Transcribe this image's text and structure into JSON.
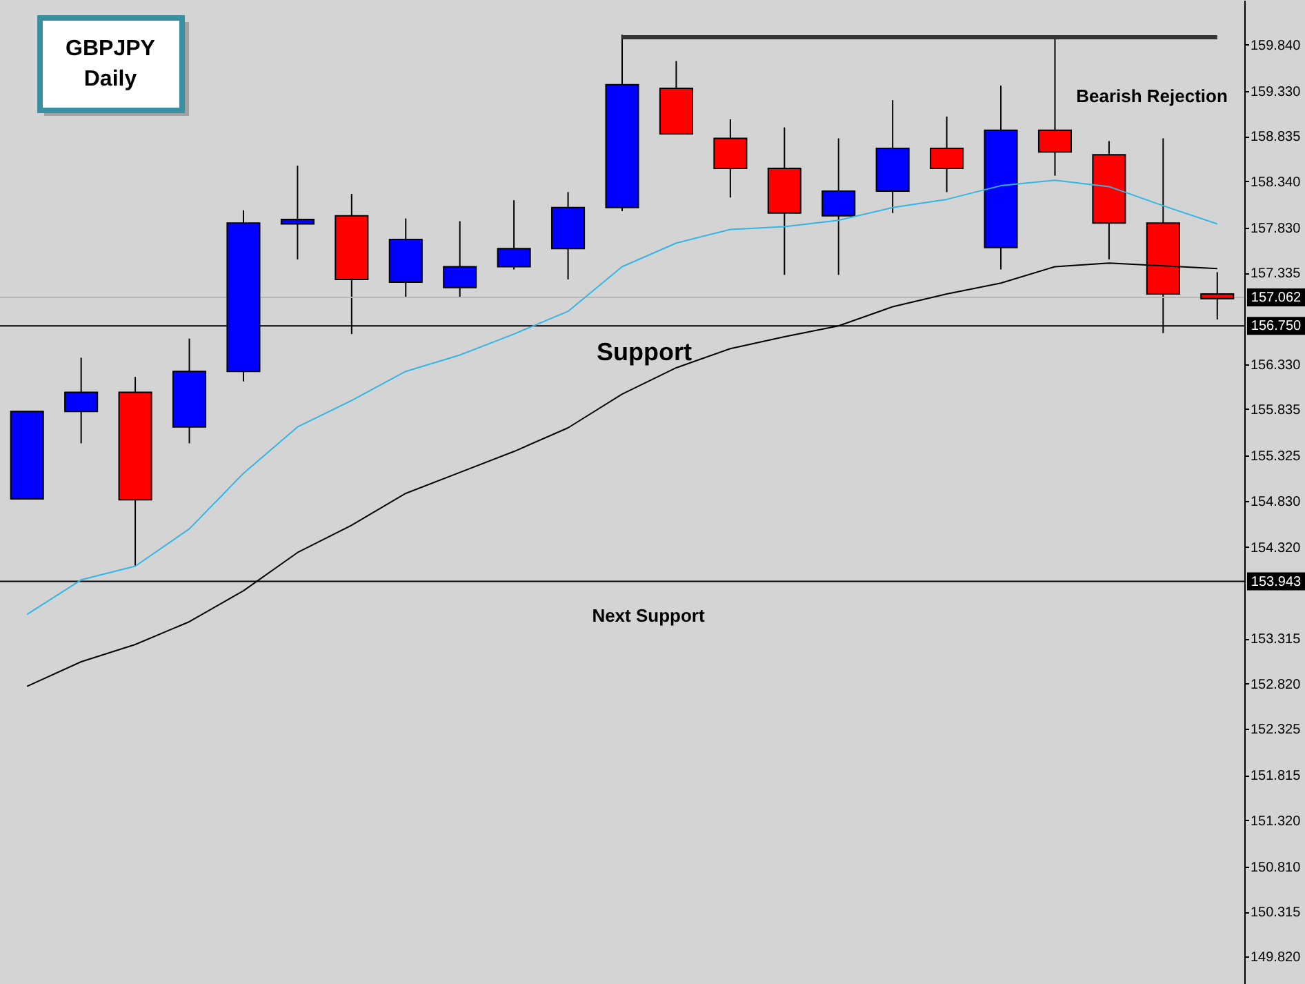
{
  "chart_data": {
    "type": "candlestick",
    "title": "GBPJPY",
    "subtitle": "Daily",
    "categories": [
      null,
      null,
      null,
      null,
      null,
      null,
      null,
      null,
      null,
      null,
      null,
      null,
      null,
      null,
      null,
      null,
      null,
      null,
      null,
      null,
      null,
      null,
      null
    ],
    "ohlc": [
      [
        154.85,
        155.81,
        154.85,
        155.81
      ],
      [
        155.81,
        156.4,
        155.46,
        156.02
      ],
      [
        156.02,
        156.19,
        154.11,
        154.84
      ],
      [
        155.64,
        156.61,
        155.46,
        156.25
      ],
      [
        156.25,
        158.02,
        156.14,
        157.88
      ],
      [
        157.87,
        158.51,
        157.48,
        157.92
      ],
      [
        157.96,
        158.2,
        156.66,
        157.26
      ],
      [
        157.23,
        157.93,
        157.07,
        157.7
      ],
      [
        157.17,
        157.9,
        157.07,
        157.4
      ],
      [
        157.4,
        158.13,
        157.37,
        157.6
      ],
      [
        157.6,
        158.22,
        157.26,
        158.05
      ],
      [
        158.05,
        159.95,
        158.01,
        159.4
      ],
      [
        159.36,
        159.66,
        158.86,
        158.86
      ],
      [
        158.81,
        159.02,
        158.16,
        158.48
      ],
      [
        158.48,
        158.93,
        157.31,
        157.99
      ],
      [
        157.96,
        158.81,
        157.31,
        158.23
      ],
      [
        158.23,
        159.23,
        157.99,
        158.7
      ],
      [
        158.7,
        159.05,
        158.22,
        158.48
      ],
      [
        157.61,
        159.39,
        157.37,
        158.9
      ],
      [
        158.9,
        159.9,
        158.4,
        158.66
      ],
      [
        158.63,
        158.78,
        157.48,
        157.88
      ],
      [
        157.88,
        158.81,
        156.67,
        157.1
      ],
      [
        157.1,
        157.34,
        156.82,
        157.05
      ]
    ],
    "colors": [
      "#0000ff",
      "#0000ff",
      "#ff0000",
      "#0000ff",
      "#0000ff",
      "#0000ff",
      "#ff0000",
      "#0000ff",
      "#0000ff",
      "#0000ff",
      "#0000ff",
      "#0000ff",
      "#ff0000",
      "#ff0000",
      "#ff0000",
      "#0000ff",
      "#0000ff",
      "#ff0000",
      "#0000ff",
      "#ff0000",
      "#ff0000",
      "#ff0000",
      "#ff0000"
    ],
    "series": [
      {
        "type": "line",
        "color": "#33b5e5",
        "values": [
          153.58,
          153.96,
          154.11,
          154.52,
          155.13,
          155.64,
          155.93,
          156.25,
          156.43,
          156.66,
          156.91,
          157.4,
          157.66,
          157.81,
          157.84,
          157.91,
          158.05,
          158.14,
          158.29,
          158.35,
          158.28,
          158.07,
          157.87
        ]
      },
      {
        "type": "line",
        "color": "#000000",
        "values": [
          152.79,
          153.06,
          153.25,
          153.5,
          153.84,
          154.26,
          154.56,
          154.91,
          155.14,
          155.37,
          155.63,
          156.0,
          156.29,
          156.5,
          156.63,
          156.75,
          156.96,
          157.1,
          157.22,
          157.4,
          157.44,
          157.41,
          157.38
        ]
      },
      {
        "type": "line",
        "color": "#333333",
        "values": [
          null,
          null,
          null,
          null,
          null,
          null,
          null,
          null,
          null,
          null,
          null,
          159.92,
          159.92,
          159.92,
          159.92,
          159.92,
          159.92,
          159.92,
          159.92,
          159.92,
          159.92,
          159.92,
          159.92
        ]
      }
    ],
    "ylim": [
      149.52,
      160.33
    ],
    "yticks": [
      {
        "value": 159.84,
        "label": "159.840"
      },
      {
        "value": 159.33,
        "label": "159.330"
      },
      {
        "value": 158.835,
        "label": "158.835"
      },
      {
        "value": 158.34,
        "label": "158.340"
      },
      {
        "value": 157.83,
        "label": "157.830"
      },
      {
        "value": 157.335,
        "label": "157.335"
      },
      {
        "value": 156.33,
        "label": "156.330"
      },
      {
        "value": 155.835,
        "label": "155.835"
      },
      {
        "value": 155.325,
        "label": "155.325"
      },
      {
        "value": 154.83,
        "label": "154.830"
      },
      {
        "value": 154.32,
        "label": "154.320"
      },
      {
        "value": 153.315,
        "label": "153.315"
      },
      {
        "value": 152.82,
        "label": "152.820"
      },
      {
        "value": 152.325,
        "label": "152.325"
      },
      {
        "value": 151.815,
        "label": "151.815"
      },
      {
        "value": 151.32,
        "label": "151.320"
      },
      {
        "value": 150.81,
        "label": "150.810"
      },
      {
        "value": 150.315,
        "label": "150.315"
      },
      {
        "value": 149.82,
        "label": "149.820"
      }
    ],
    "ref_lines": [
      {
        "axis": "y",
        "value": 157.062,
        "label": "157.062",
        "color": "#b8b8b8"
      },
      {
        "axis": "y",
        "value": 156.75,
        "label": "156.750",
        "color": "#000000"
      },
      {
        "axis": "y",
        "value": 153.943,
        "label": "153.943",
        "color": "#000000"
      }
    ],
    "annotations": [
      {
        "text": "Support",
        "y": 156.75
      },
      {
        "text": "Next Support",
        "y": 153.943
      },
      "Bearish Rejection"
    ],
    "grid": false,
    "tick_labels": "y"
  }
}
